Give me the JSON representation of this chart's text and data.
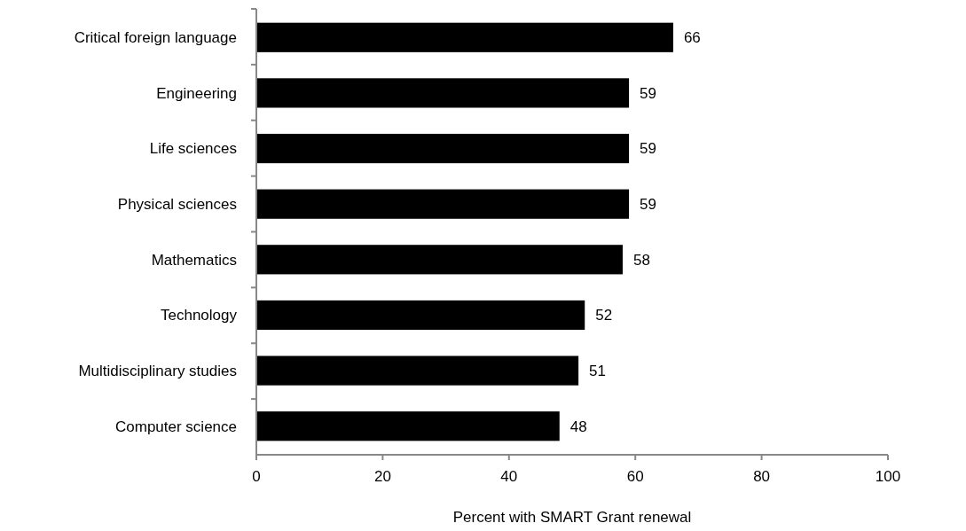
{
  "chart_data": {
    "type": "bar",
    "orientation": "horizontal",
    "xlabel": "Percent with SMART Grant renewal",
    "categories": [
      "Critical foreign language",
      "Engineering",
      "Life sciences",
      "Physical sciences",
      "Mathematics",
      "Technology",
      "Multidisciplinary studies",
      "Computer science"
    ],
    "values": [
      66,
      59,
      59,
      59,
      58,
      52,
      51,
      48
    ],
    "color": "#000000",
    "xlim": [
      0,
      100
    ],
    "xticks": [
      0,
      20,
      40,
      60,
      80,
      100
    ],
    "data_labels": true
  }
}
